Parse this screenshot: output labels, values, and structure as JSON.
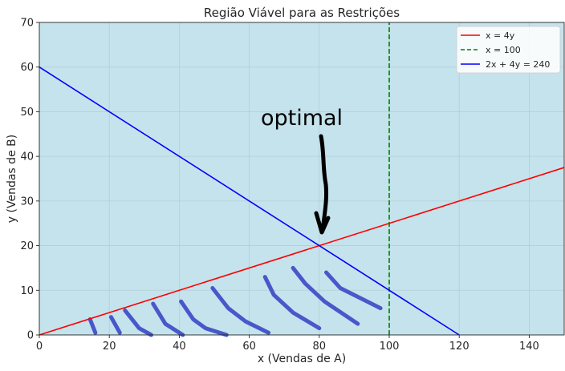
{
  "chart_data": {
    "type": "line",
    "title": "Região Viável para as Restrições",
    "xlabel": "x (Vendas de A)",
    "ylabel": "y (Vendas de B)",
    "xlim": [
      0,
      150
    ],
    "ylim": [
      0,
      70
    ],
    "x_ticks": [
      0,
      20,
      40,
      60,
      80,
      100,
      120,
      140
    ],
    "y_ticks": [
      0,
      10,
      20,
      30,
      40,
      50,
      60,
      70
    ],
    "grid": true,
    "legend_position": "top-right",
    "background_color": "#c5e3ec",
    "series": [
      {
        "name": "x = 4y",
        "color": "#ff0000",
        "style": "solid",
        "points": [
          [
            0,
            0
          ],
          [
            150,
            37.5
          ]
        ]
      },
      {
        "name": "x = 100",
        "color": "#008000",
        "style": "dashed",
        "points": [
          [
            100,
            0
          ],
          [
            100,
            70
          ]
        ]
      },
      {
        "name": "2x + 4y = 240",
        "color": "#0000ff",
        "style": "solid",
        "points": [
          [
            0,
            60
          ],
          [
            120,
            0
          ]
        ]
      }
    ],
    "annotation": {
      "text": "optimal",
      "arrow_target": [
        80,
        20
      ]
    },
    "hatch_color": "#4150c8"
  }
}
